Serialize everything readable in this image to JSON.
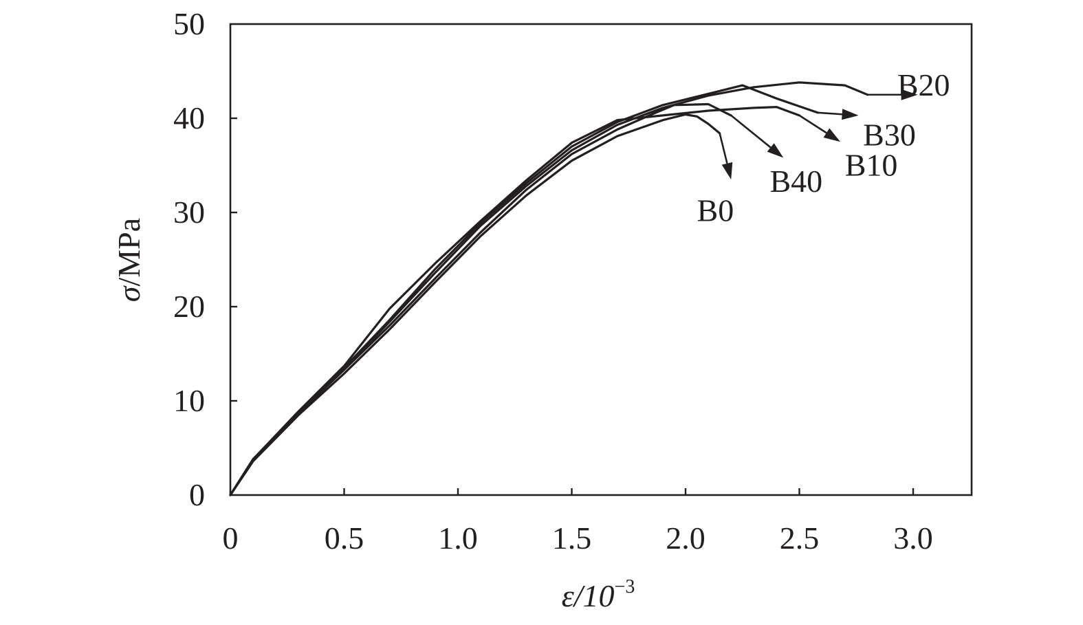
{
  "chart_data": {
    "type": "line",
    "title": "",
    "xlabel": "ε/10",
    "xlabel_exponent": "−3",
    "ylabel_symbol": "σ",
    "ylabel_unit": "/MPa",
    "xlim": [
      0,
      3.25
    ],
    "ylim": [
      0,
      50
    ],
    "x_ticks": [
      0,
      0.5,
      1.0,
      1.5,
      2.0,
      2.5,
      3.0
    ],
    "x_tick_labels": [
      "0",
      "0.5",
      "1.0",
      "1.5",
      "2.0",
      "2.5",
      "3.0"
    ],
    "y_ticks": [
      0,
      10,
      20,
      30,
      40,
      50
    ],
    "y_tick_labels": [
      "0",
      "10",
      "20",
      "30",
      "40",
      "50"
    ],
    "grid": false,
    "legend": "none",
    "line_color": "#231f20",
    "series": [
      {
        "name": "B0",
        "points": [
          [
            0,
            0
          ],
          [
            0.1,
            3.6
          ],
          [
            0.3,
            8.5
          ],
          [
            0.5,
            12.9
          ],
          [
            0.7,
            17.6
          ],
          [
            0.9,
            22.6
          ],
          [
            1.1,
            27.5
          ],
          [
            1.3,
            31.8
          ],
          [
            1.5,
            35.5
          ],
          [
            1.7,
            38.1
          ],
          [
            1.9,
            39.8
          ],
          [
            2.0,
            40.4
          ],
          [
            2.05,
            40.2
          ],
          [
            2.1,
            39.4
          ],
          [
            2.15,
            38.4
          ]
        ],
        "arrow_end": [
          2.2,
          33.5
        ],
        "label_pos": [
          2.05,
          30.2
        ]
      },
      {
        "name": "B40",
        "points": [
          [
            0,
            0
          ],
          [
            0.1,
            3.7
          ],
          [
            0.3,
            8.7
          ],
          [
            0.5,
            13.3
          ],
          [
            0.7,
            18.0
          ],
          [
            0.9,
            23.0
          ],
          [
            1.1,
            27.9
          ],
          [
            1.3,
            32.4
          ],
          [
            1.5,
            36.2
          ],
          [
            1.7,
            38.8
          ],
          [
            1.85,
            40.4
          ],
          [
            1.95,
            41.4
          ],
          [
            2.1,
            41.5
          ],
          [
            2.2,
            40.3
          ]
        ],
        "arrow_end": [
          2.43,
          35.8
        ],
        "label_pos": [
          2.37,
          33.3
        ]
      },
      {
        "name": "B10",
        "points": [
          [
            0,
            0
          ],
          [
            0.1,
            3.8
          ],
          [
            0.3,
            8.9
          ],
          [
            0.5,
            13.7
          ],
          [
            0.7,
            19.8
          ],
          [
            0.9,
            24.6
          ],
          [
            1.1,
            29.1
          ],
          [
            1.3,
            33.4
          ],
          [
            1.5,
            37.4
          ],
          [
            1.7,
            39.8
          ],
          [
            1.9,
            40.3
          ],
          [
            2.1,
            40.8
          ],
          [
            2.3,
            41.1
          ],
          [
            2.4,
            41.2
          ],
          [
            2.5,
            40.3
          ]
        ],
        "arrow_end": [
          2.68,
          37.5
        ],
        "label_pos": [
          2.7,
          35.0
        ]
      },
      {
        "name": "B30",
        "points": [
          [
            0,
            0
          ],
          [
            0.1,
            3.8
          ],
          [
            0.3,
            8.8
          ],
          [
            0.5,
            13.5
          ],
          [
            0.7,
            18.6
          ],
          [
            0.9,
            24.0
          ],
          [
            1.1,
            28.9
          ],
          [
            1.3,
            33.1
          ],
          [
            1.5,
            37.0
          ],
          [
            1.7,
            39.6
          ],
          [
            1.9,
            41.4
          ],
          [
            2.1,
            42.6
          ],
          [
            2.25,
            43.5
          ],
          [
            2.4,
            42.1
          ],
          [
            2.58,
            40.6
          ]
        ],
        "arrow_end": [
          2.76,
          40.3
        ],
        "label_pos": [
          2.78,
          38.2
        ]
      },
      {
        "name": "B20",
        "points": [
          [
            0,
            0
          ],
          [
            0.1,
            3.8
          ],
          [
            0.3,
            8.7
          ],
          [
            0.5,
            13.4
          ],
          [
            0.7,
            18.4
          ],
          [
            0.9,
            23.6
          ],
          [
            1.1,
            28.6
          ],
          [
            1.3,
            32.8
          ],
          [
            1.5,
            36.6
          ],
          [
            1.7,
            39.3
          ],
          [
            1.9,
            41.1
          ],
          [
            2.1,
            42.4
          ],
          [
            2.3,
            43.3
          ],
          [
            2.5,
            43.8
          ],
          [
            2.7,
            43.5
          ],
          [
            2.8,
            42.5
          ]
        ],
        "arrow_end": [
          3.02,
          42.5
        ],
        "label_pos": [
          2.93,
          43.5
        ]
      }
    ]
  }
}
